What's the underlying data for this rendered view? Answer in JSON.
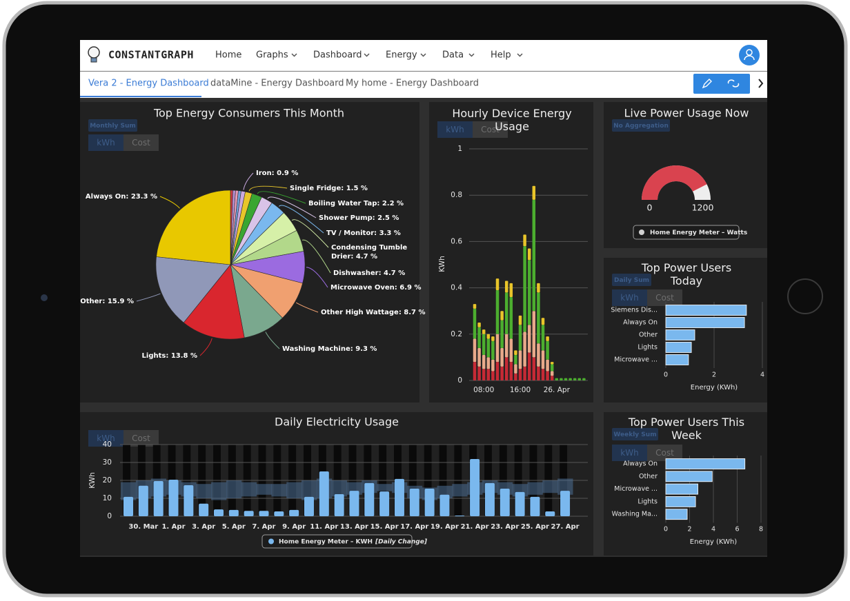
{
  "nav": {
    "brand": "CONSTANTGRAPH",
    "menu": [
      "Home",
      "Graphs",
      "Dashboard",
      "Energy",
      "Data",
      "Help"
    ]
  },
  "tabs": [
    "Vera 2 - Energy Dashboard",
    "dataMine - Energy Dashboard",
    "My home - Energy Dashboard"
  ],
  "chart_data": [
    {
      "type": "pie",
      "title": "Top Energy Consumers This Month",
      "aggregation": "Monthly Sum",
      "toggle": [
        "kWh",
        "Cost"
      ],
      "values": [
        0.5,
        0.6,
        0.6,
        0.6,
        0.9,
        1.5,
        2.2,
        2.5,
        3.3,
        4.7,
        4.7,
        6.9,
        8.7,
        9.3,
        13.8,
        15.9,
        23.3
      ],
      "value_labels": [
        null,
        null,
        null,
        null,
        "Iron: 0.9 %",
        "Single Fridge: 1.5 %",
        "Boiling Water Tap: 2.2 %",
        "Shower Pump: 2.5 %",
        "TV / Monitor: 3.3 %",
        "Condensing Tumble Drier: 4.7 %",
        "Dishwasher: 4.7 %",
        "Microwave Oven: 6.9 %",
        "Other High Wattage: 8.7 %",
        "Washing Machine: 9.3 %",
        "Lights: 13.8 %",
        "Other: 15.9 %",
        "Always On: 23.3 %"
      ],
      "colors": [
        "#d23c44",
        "#b58fd0",
        "#e89ab8",
        "#6f9fd8",
        "#c9a9e0",
        "#e8c62a",
        "#3aa632",
        "#d9c3e8",
        "#7ab8ee",
        "#d6f0a8",
        "#b2d88a",
        "#9b6be0",
        "#f0a070",
        "#7aa88e",
        "#d9262e",
        "#9098b8",
        "#e8c800"
      ]
    },
    {
      "type": "stacked_bar",
      "title": "Hourly Device Energy Usage",
      "toggle": [
        "kWh",
        "Cost"
      ],
      "y_label": "KWh",
      "categories": [
        null,
        null,
        "08:00",
        null,
        null,
        null,
        null,
        null,
        null,
        null,
        "16:00",
        null,
        null,
        null,
        null,
        null,
        null,
        null,
        "26. Apr",
        null,
        null,
        null,
        null,
        null,
        null
      ],
      "series": [
        {
          "color": "#c62a35",
          "values": [
            0.08,
            0.06,
            0.05,
            0.05,
            0.04,
            0.08,
            0.06,
            0.1,
            0.08,
            0.03,
            0.05,
            0.06,
            0.12,
            0.1,
            0.06,
            0.05,
            0.04,
            0.02,
            0,
            0,
            0,
            0,
            0,
            0,
            0
          ]
        },
        {
          "color": "#e8a98a",
          "values": [
            0.1,
            0.08,
            0.06,
            0.05,
            0.05,
            0.12,
            0.08,
            0.1,
            0.1,
            0.04,
            0.08,
            0.15,
            0.12,
            0.2,
            0.1,
            0.08,
            0.05,
            0.02,
            0,
            0,
            0,
            0,
            0,
            0,
            0
          ]
        },
        {
          "color": "#4cae2f",
          "values": [
            0.13,
            0.09,
            0.09,
            0.08,
            0.08,
            0.19,
            0.12,
            0.18,
            0.18,
            0.04,
            0.11,
            0.37,
            0.28,
            0.48,
            0.22,
            0.11,
            0.08,
            0.03,
            0.01,
            0.01,
            0.01,
            0.01,
            0.01,
            0.01,
            0.01
          ]
        },
        {
          "color": "#e8c42a",
          "values": [
            0.02,
            0.02,
            0.02,
            0.02,
            0.02,
            0.05,
            0.04,
            0.05,
            0.06,
            0.02,
            0.04,
            0.05,
            0.05,
            0.06,
            0.04,
            0.03,
            0.02,
            0.01,
            0,
            0,
            0,
            0,
            0,
            0,
            0
          ]
        }
      ],
      "ylim": [
        0,
        1
      ],
      "yticks": [
        0,
        0.2,
        0.4,
        0.6,
        0.8,
        1
      ],
      "grid": true
    },
    {
      "type": "gauge",
      "title": "Live Power Usage Now",
      "aggregation": "No Aggregation",
      "series": [
        {
          "name": "Home Energy Meter – Watts",
          "color": "#d9434f",
          "values": [
            1020
          ]
        }
      ],
      "ylim": [
        0,
        1200
      ],
      "yticks": [
        0,
        1200
      ]
    },
    {
      "type": "hbar",
      "title": "Top Power Users Today",
      "aggregation": "Daily Sum",
      "toggle": [
        "kWh",
        "Cost"
      ],
      "categories": [
        "Siemens Dis...",
        "Always On",
        "Other",
        "Lights",
        "Microwave ..."
      ],
      "values": [
        3.34,
        3.26,
        1.2,
        1.06,
        0.94
      ],
      "color": "#7ab8ee",
      "xlim": [
        0,
        4
      ],
      "xticks": [
        0,
        2,
        4
      ],
      "x_label": "Energy (KWh)"
    },
    {
      "type": "bar",
      "title": "Daily Electricity Usage",
      "toggle": [
        "kWh",
        "Cost"
      ],
      "y_label": "KWh",
      "categories": [
        null,
        "30. Mar",
        null,
        "1. Apr",
        null,
        "3. Apr",
        null,
        "5. Apr",
        null,
        "7. Apr",
        null,
        "9. Apr",
        null,
        "11. Apr",
        null,
        "13. Apr",
        null,
        "15. Apr",
        null,
        "17. Apr",
        null,
        "19. Apr",
        null,
        "21. Apr",
        null,
        "23. Apr",
        null,
        "25. Apr",
        null,
        "27. Apr"
      ],
      "series": [
        {
          "name": "Home Energy Meter – KWH",
          "color": "#7ab8ee",
          "values": [
            10.8,
            17,
            19.6,
            20.4,
            17.3,
            7,
            3.8,
            3.5,
            3,
            3,
            2.7,
            3.5,
            10.8,
            25,
            12.3,
            14.2,
            18.5,
            13.8,
            20.8,
            15.4,
            15.4,
            12,
            0.4,
            31.9,
            18.5,
            15.4,
            13.5,
            10.8,
            2.7,
            14.2
          ]
        }
      ],
      "band": {
        "color": "#4d6f96",
        "low": [
          9,
          10,
          11,
          12,
          11,
          10,
          9,
          10,
          11,
          12,
          11,
          10,
          9,
          10,
          11,
          12,
          13,
          14,
          13,
          10,
          9,
          10,
          11,
          12,
          13,
          12,
          11,
          12,
          13,
          12
        ],
        "high": [
          19,
          20,
          21,
          20,
          19,
          18,
          19,
          20,
          19,
          18,
          18,
          19,
          20,
          21,
          20,
          19,
          20,
          18,
          19,
          17,
          16,
          17,
          18,
          19,
          20,
          19,
          18,
          19,
          20,
          21
        ]
      },
      "legend_note": "[Daily Change]",
      "ylim": [
        0,
        40
      ],
      "yticks": [
        0,
        10,
        20,
        30,
        40
      ],
      "grid": true
    },
    {
      "type": "hbar",
      "title": "Top Power Users This Week",
      "aggregation": "Weekly Sum",
      "toggle": [
        "kWh",
        "Cost"
      ],
      "categories": [
        "Always On",
        "Other",
        "Microwave ...",
        "Lights",
        "Washing Ma..."
      ],
      "values": [
        6.65,
        3.9,
        2.7,
        2.5,
        1.8
      ],
      "color": "#7ab8ee",
      "xlim": [
        0,
        8
      ],
      "xticks": [
        0,
        2,
        4,
        6,
        8
      ],
      "x_label": "Energy (KWh)"
    }
  ]
}
